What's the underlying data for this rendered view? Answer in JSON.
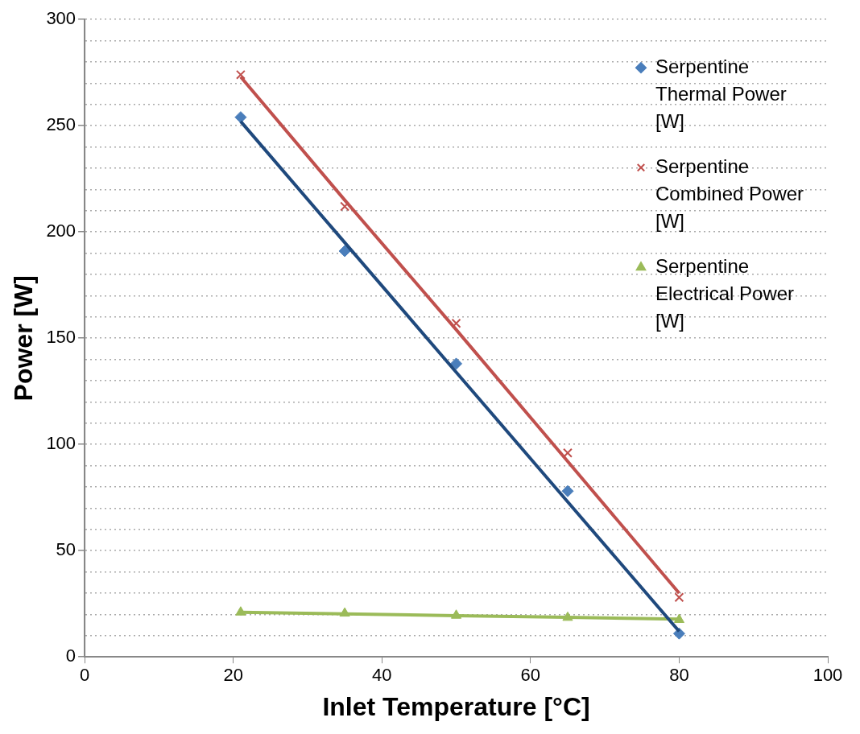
{
  "chart_data": {
    "type": "scatter",
    "xlabel": "Inlet Temperature [°C]",
    "ylabel": "Power [W]",
    "x": [
      21,
      35,
      50,
      65,
      80
    ],
    "series": [
      {
        "name": "Serpentine Thermal Power [W]",
        "color": "#4a7ebb",
        "marker": "diamond",
        "values": [
          254,
          191,
          138,
          78,
          11
        ]
      },
      {
        "name": "Serpentine Combined Power [W]",
        "color": "#c0504d",
        "marker": "cross",
        "values": [
          274,
          212,
          157,
          96,
          28
        ]
      },
      {
        "name": "Serpentine Electrical Power [W]",
        "color": "#9bbb59",
        "marker": "triangle",
        "values": [
          21,
          20.5,
          19.5,
          18.5,
          17.5
        ]
      },
      {
        "type": "line",
        "color": "#1f497d",
        "marker": "none",
        "values": [
          252,
          195,
          134,
          73,
          12
        ]
      },
      {
        "type": "line",
        "color": "#c0504d",
        "marker": "none",
        "values": [
          273,
          215,
          154,
          92,
          30
        ]
      },
      {
        "type": "line",
        "color": "#9bbb59",
        "marker": "none",
        "values": [
          21,
          20.2,
          19.4,
          18.6,
          17.8
        ]
      }
    ],
    "xlim": [
      0,
      100
    ],
    "xticks": [
      0,
      20,
      40,
      60,
      80,
      100
    ],
    "ylim": [
      0,
      300
    ],
    "yticks": [
      0,
      {
        "value": 10,
        "label": null
      },
      {
        "value": 20,
        "label": null
      },
      {
        "value": 30,
        "label": null
      },
      {
        "value": 40,
        "label": null
      },
      50,
      {
        "value": 60,
        "label": null
      },
      {
        "value": 70,
        "label": null
      },
      {
        "value": 80,
        "label": null
      },
      {
        "value": 90,
        "label": null
      },
      100,
      {
        "value": 110,
        "label": null
      },
      {
        "value": 120,
        "label": null
      },
      {
        "value": 130,
        "label": null
      },
      {
        "value": 140,
        "label": null
      },
      150,
      {
        "value": 160,
        "label": null
      },
      {
        "value": 170,
        "label": null
      },
      {
        "value": 180,
        "label": null
      },
      {
        "value": 190,
        "label": null
      },
      200,
      {
        "value": 210,
        "label": null
      },
      {
        "value": 220,
        "label": null
      },
      {
        "value": 230,
        "label": null
      },
      {
        "value": 240,
        "label": null
      },
      250,
      {
        "value": 260,
        "label": null
      },
      {
        "value": 270,
        "label": null
      },
      {
        "value": 280,
        "label": null
      },
      {
        "value": 290,
        "label": null
      },
      300
    ],
    "grid": "y",
    "legend": "right"
  }
}
